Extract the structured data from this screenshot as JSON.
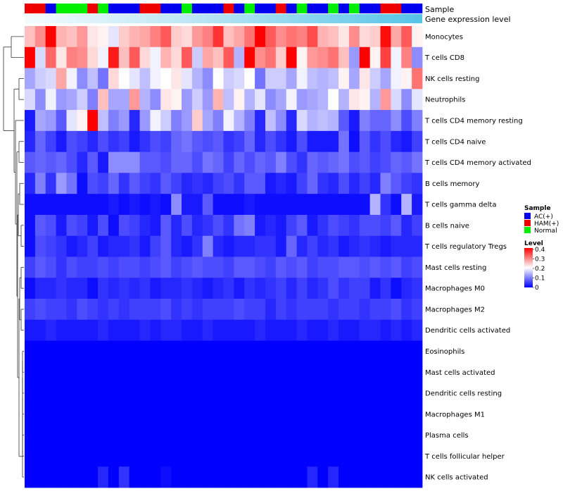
{
  "chart_data": {
    "type": "heatmap",
    "title": "",
    "annotation_labels": {
      "sample": "Sample",
      "expression": "Gene expression level"
    },
    "rows": [
      "Monocytes",
      "T cells CD8",
      "NK cells resting",
      "Neutrophils",
      "T cells CD4 memory resting",
      "T cells CD4 naive",
      "T cells CD4 memory activated",
      "B cells memory",
      "T cells gamma delta",
      "B cells naive",
      "T cells regulatory  Tregs",
      "Mast cells resting",
      "Macrophages M0",
      "Macrophages M2",
      "Dendritic cells activated",
      "Eosinophils",
      "Mast cells activated",
      "Dendritic cells resting",
      "Macrophages M1",
      "Plasma cells",
      "T cells follicular helper",
      "NK cells activated"
    ],
    "sample_groups": [
      "HAM(+)",
      "HAM(+)",
      "AC(+)",
      "Normal",
      "Normal",
      "Normal",
      "HAM(+)",
      "Normal",
      "AC(+)",
      "AC(+)",
      "AC(+)",
      "HAM(+)",
      "HAM(+)",
      "AC(+)",
      "AC(+)",
      "Normal",
      "AC(+)",
      "AC(+)",
      "AC(+)",
      "HAM(+)",
      "AC(+)",
      "Normal",
      "AC(+)",
      "AC(+)",
      "HAM(+)",
      "AC(+)",
      "Normal",
      "AC(+)",
      "AC(+)",
      "Normal",
      "AC(+)",
      "Normal",
      "AC(+)",
      "AC(+)",
      "HAM(+)",
      "HAM(+)",
      "AC(+)",
      "AC(+)"
    ],
    "color_scale": {
      "min": 0,
      "max": 0.4,
      "colors": [
        "#0000ff",
        "#ffffff",
        "#ff0000"
      ]
    },
    "legend": {
      "sample_title": "Sample",
      "sample_entries": [
        {
          "label": "AC(+)",
          "color": "#0000ee"
        },
        {
          "label": "HAM(+)",
          "color": "#ee0000"
        },
        {
          "label": "Normal",
          "color": "#00ee00"
        }
      ],
      "level_title": "Level",
      "level_ticks": [
        "0.4",
        "0.3",
        "0.2",
        "0.1",
        "0"
      ]
    },
    "values": [
      [
        0.25,
        0.29,
        0.4,
        0.26,
        0.25,
        0.28,
        0.22,
        0.21,
        0.18,
        0.24,
        0.26,
        0.27,
        0.3,
        0.33,
        0.24,
        0.23,
        0.28,
        0.3,
        0.36,
        0.25,
        0.27,
        0.31,
        0.4,
        0.33,
        0.29,
        0.31,
        0.3,
        0.34,
        0.26,
        0.25,
        0.22,
        0.29,
        0.23,
        0.24,
        0.39,
        0.27,
        0.33,
        0.21
      ],
      [
        0.4,
        0.17,
        0.32,
        0.22,
        0.3,
        0.29,
        0.23,
        0.19,
        0.38,
        0.25,
        0.33,
        0.23,
        0.19,
        0.26,
        0.23,
        0.33,
        0.16,
        0.27,
        0.25,
        0.33,
        0.14,
        0.4,
        0.29,
        0.31,
        0.24,
        0.4,
        0.21,
        0.28,
        0.29,
        0.31,
        0.25,
        0.12,
        0.4,
        0.21,
        0.35,
        0.19,
        0.3,
        0.11
      ],
      [
        0.13,
        0.16,
        0.17,
        0.27,
        0.19,
        0.11,
        0.15,
        0.09,
        0.23,
        0.2,
        0.18,
        0.15,
        0.19,
        0.2,
        0.22,
        0.18,
        0.14,
        0.11,
        0.2,
        0.16,
        0.17,
        0.2,
        0.09,
        0.16,
        0.16,
        0.13,
        0.19,
        0.15,
        0.14,
        0.15,
        0.21,
        0.13,
        0.22,
        0.16,
        0.13,
        0.19,
        0.21,
        0.31
      ],
      [
        0.17,
        0.11,
        0.19,
        0.12,
        0.13,
        0.16,
        0.1,
        0.25,
        0.13,
        0.13,
        0.28,
        0.14,
        0.11,
        0.22,
        0.21,
        0.12,
        0.16,
        0.12,
        0.26,
        0.15,
        0.21,
        0.14,
        0.18,
        0.11,
        0.13,
        0.19,
        0.12,
        0.13,
        0.14,
        0.2,
        0.14,
        0.22,
        0.21,
        0.14,
        0.28,
        0.17,
        0.11,
        0.18
      ],
      [
        0.02,
        0.13,
        0.12,
        0.07,
        0.18,
        0.21,
        0.4,
        0.15,
        0.1,
        0.12,
        0.03,
        0.12,
        0.19,
        0.16,
        0.1,
        0.12,
        0.24,
        0.13,
        0.1,
        0.19,
        0.14,
        0.1,
        0.03,
        0.15,
        0.11,
        0.03,
        0.17,
        0.14,
        0.15,
        0.14,
        0.07,
        0.02,
        0.1,
        0.08,
        0.08,
        0.11,
        0.06,
        0.1
      ],
      [
        0.03,
        0.08,
        0.05,
        0.02,
        0.06,
        0.05,
        0.03,
        0.06,
        0.04,
        0.05,
        0.02,
        0.04,
        0.06,
        0.05,
        0.08,
        0.09,
        0.07,
        0.06,
        0.07,
        0.04,
        0.05,
        0.08,
        0.03,
        0.06,
        0.04,
        0.02,
        0.06,
        0.02,
        0.02,
        0.02,
        0.09,
        0.01,
        0.07,
        0.04,
        0.06,
        0.03,
        0.02,
        0.05
      ],
      [
        0.07,
        0.08,
        0.07,
        0.08,
        0.06,
        0.03,
        0.07,
        0.02,
        0.11,
        0.11,
        0.11,
        0.07,
        0.07,
        0.06,
        0.08,
        0.08,
        0.06,
        0.09,
        0.08,
        0.05,
        0.08,
        0.06,
        0.08,
        0.07,
        0.1,
        0.06,
        0.04,
        0.08,
        0.07,
        0.08,
        0.09,
        0.06,
        0.07,
        0.05,
        0.06,
        0.08,
        0.07,
        0.09
      ],
      [
        0.03,
        0.1,
        0.04,
        0.12,
        0.09,
        0.01,
        0.06,
        0.05,
        0.08,
        0.04,
        0.07,
        0.05,
        0.04,
        0.07,
        0.05,
        0.03,
        0.04,
        0.03,
        0.05,
        0.06,
        0.04,
        0.07,
        0.07,
        0.02,
        0.03,
        0.02,
        0.05,
        0.08,
        0.04,
        0.03,
        0.06,
        0.03,
        0.05,
        0.03,
        0.1,
        0.07,
        0.05,
        0.04
      ],
      [
        0.01,
        0.01,
        0.01,
        0.01,
        0.01,
        0.01,
        0.01,
        0.01,
        0.02,
        0.01,
        0.02,
        0.01,
        0.02,
        0.01,
        0.11,
        0.02,
        0.02,
        0.07,
        0.01,
        0.01,
        0.01,
        0.02,
        0.01,
        0.01,
        0.01,
        0.01,
        0.01,
        0.01,
        0.01,
        0.01,
        0.01,
        0.01,
        0.01,
        0.14,
        0.04,
        0.01,
        0.14,
        0.02
      ],
      [
        0.01,
        0.07,
        0.06,
        0.02,
        0.06,
        0.05,
        0.02,
        0.06,
        0.01,
        0.06,
        0.05,
        0.03,
        0.02,
        0.07,
        0.03,
        0.06,
        0.03,
        0.04,
        0.06,
        0.04,
        0.09,
        0.1,
        0.02,
        0.03,
        0.02,
        0.05,
        0.07,
        0.02,
        0.04,
        0.06,
        0.05,
        0.04,
        0.06,
        0.06,
        0.05,
        0.07,
        0.03,
        0.05
      ],
      [
        0.01,
        0.06,
        0.05,
        0.04,
        0.02,
        0.03,
        0.05,
        0.02,
        0.03,
        0.03,
        0.04,
        0.02,
        0.05,
        0.07,
        0.03,
        0.02,
        0.04,
        0.1,
        0.03,
        0.02,
        0.03,
        0.03,
        0.04,
        0.04,
        0.02,
        0.08,
        0.03,
        0.05,
        0.03,
        0.04,
        0.02,
        0.03,
        0.04,
        0.03,
        0.02,
        0.03,
        0.03,
        0.03
      ],
      [
        0.05,
        0.07,
        0.06,
        0.04,
        0.06,
        0.05,
        0.05,
        0.06,
        0.05,
        0.06,
        0.06,
        0.05,
        0.06,
        0.07,
        0.05,
        0.06,
        0.07,
        0.06,
        0.06,
        0.05,
        0.07,
        0.07,
        0.06,
        0.05,
        0.07,
        0.06,
        0.07,
        0.05,
        0.06,
        0.06,
        0.07,
        0.07,
        0.06,
        0.07,
        0.06,
        0.07,
        0.05,
        0.06
      ],
      [
        0.01,
        0.03,
        0.03,
        0.04,
        0.03,
        0.03,
        0.01,
        0.04,
        0.03,
        0.04,
        0.03,
        0.04,
        0.02,
        0.03,
        0.03,
        0.04,
        0.03,
        0.02,
        0.03,
        0.04,
        0.02,
        0.04,
        0.03,
        0.04,
        0.05,
        0.03,
        0.05,
        0.03,
        0.04,
        0.06,
        0.04,
        0.05,
        0.05,
        0.02,
        0.04,
        0.01,
        0.03,
        0.04
      ],
      [
        0.05,
        0.06,
        0.05,
        0.05,
        0.04,
        0.06,
        0.05,
        0.04,
        0.05,
        0.04,
        0.05,
        0.05,
        0.05,
        0.06,
        0.04,
        0.05,
        0.04,
        0.05,
        0.05,
        0.05,
        0.06,
        0.05,
        0.05,
        0.03,
        0.05,
        0.04,
        0.05,
        0.05,
        0.05,
        0.04,
        0.05,
        0.05,
        0.04,
        0.05,
        0.05,
        0.06,
        0.04,
        0.05
      ],
      [
        0.02,
        0.02,
        0.03,
        0.02,
        0.02,
        0.02,
        0.02,
        0.03,
        0.02,
        0.02,
        0.02,
        0.03,
        0.02,
        0.03,
        0.03,
        0.02,
        0.02,
        0.03,
        0.02,
        0.02,
        0.02,
        0.02,
        0.03,
        0.02,
        0.02,
        0.02,
        0.03,
        0.02,
        0.02,
        0.03,
        0.02,
        0.02,
        0.03,
        0.03,
        0.02,
        0.03,
        0.02,
        0.03
      ],
      [
        0,
        0,
        0,
        0,
        0,
        0,
        0,
        0,
        0,
        0,
        0,
        0,
        0,
        0,
        0,
        0,
        0,
        0,
        0,
        0,
        0,
        0,
        0,
        0,
        0,
        0,
        0,
        0,
        0,
        0,
        0,
        0,
        0,
        0,
        0,
        0,
        0,
        0
      ],
      [
        0,
        0,
        0,
        0,
        0,
        0,
        0,
        0,
        0,
        0,
        0,
        0,
        0,
        0,
        0,
        0,
        0,
        0,
        0,
        0,
        0,
        0,
        0,
        0,
        0,
        0,
        0,
        0,
        0,
        0,
        0,
        0,
        0,
        0,
        0,
        0,
        0,
        0
      ],
      [
        0,
        0,
        0,
        0,
        0,
        0,
        0,
        0,
        0,
        0,
        0,
        0,
        0,
        0,
        0,
        0,
        0,
        0,
        0,
        0,
        0,
        0,
        0,
        0,
        0,
        0,
        0,
        0,
        0,
        0,
        0,
        0,
        0,
        0,
        0,
        0,
        0,
        0
      ],
      [
        0,
        0,
        0,
        0,
        0,
        0,
        0,
        0,
        0,
        0,
        0,
        0,
        0,
        0,
        0,
        0,
        0,
        0,
        0,
        0,
        0,
        0,
        0,
        0,
        0,
        0,
        0,
        0,
        0,
        0,
        0,
        0,
        0,
        0,
        0,
        0,
        0,
        0
      ],
      [
        0,
        0,
        0,
        0,
        0,
        0,
        0,
        0,
        0,
        0,
        0,
        0,
        0,
        0,
        0,
        0,
        0,
        0,
        0,
        0,
        0,
        0,
        0,
        0,
        0,
        0,
        0,
        0,
        0,
        0,
        0,
        0,
        0,
        0,
        0,
        0,
        0,
        0
      ],
      [
        0,
        0,
        0,
        0,
        0,
        0,
        0,
        0,
        0,
        0,
        0,
        0,
        0,
        0,
        0,
        0,
        0,
        0,
        0,
        0,
        0,
        0,
        0,
        0,
        0,
        0,
        0,
        0,
        0,
        0,
        0,
        0,
        0,
        0,
        0,
        0,
        0,
        0
      ],
      [
        0,
        0,
        0,
        0,
        0,
        0,
        0,
        0.03,
        0,
        0.04,
        0,
        0,
        0,
        0.01,
        0,
        0,
        0,
        0,
        0,
        0,
        0,
        0,
        0,
        0,
        0,
        0,
        0,
        0.03,
        0,
        0.03,
        0,
        0,
        0,
        0,
        0,
        0,
        0,
        0
      ]
    ]
  }
}
